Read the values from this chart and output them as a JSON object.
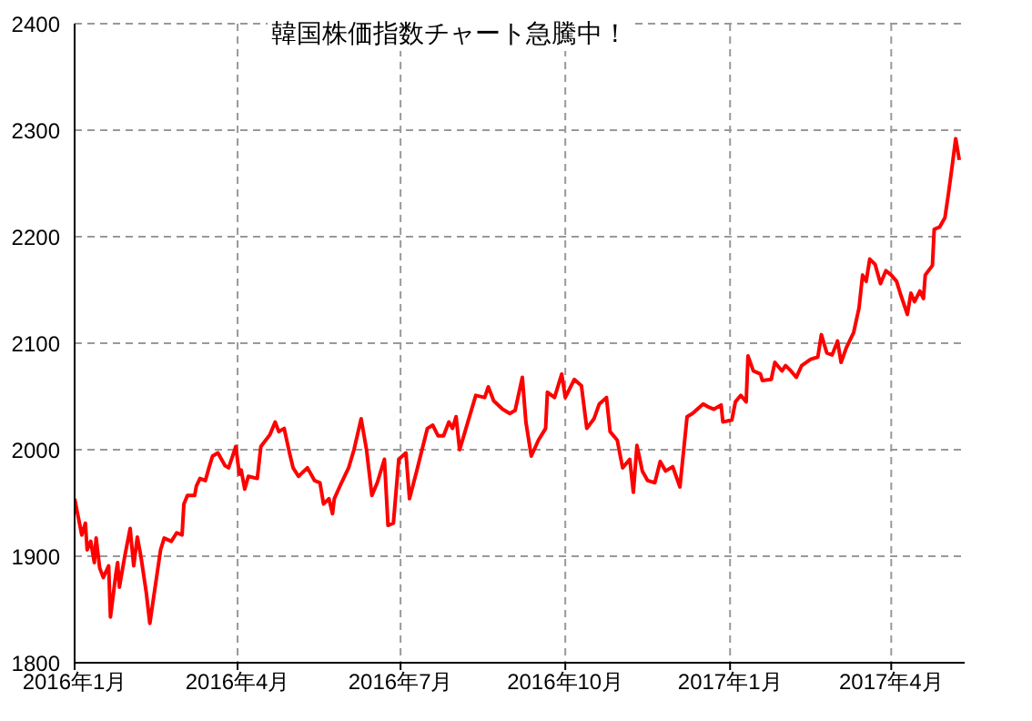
{
  "chart_data": {
    "type": "line",
    "title": "韓国株価指数チャート急騰中！",
    "x": [
      "2016-01-01",
      "2016-01-03",
      "2016-01-05",
      "2016-01-07",
      "2016-01-08",
      "2016-01-10",
      "2016-01-12",
      "2016-01-13",
      "2016-01-15",
      "2016-01-17",
      "2016-01-20",
      "2016-01-21",
      "2016-01-24",
      "2016-01-25",
      "2016-01-26",
      "2016-01-29",
      "2016-02-01",
      "2016-02-03",
      "2016-02-05",
      "2016-02-07",
      "2016-02-10",
      "2016-02-12",
      "2016-02-14",
      "2016-02-18",
      "2016-02-20",
      "2016-02-24",
      "2016-02-27",
      "2016-03-01",
      "2016-03-02",
      "2016-03-04",
      "2016-03-08",
      "2016-03-09",
      "2016-03-11",
      "2016-03-14",
      "2016-03-16",
      "2016-03-18",
      "2016-03-21",
      "2016-03-25",
      "2016-03-27",
      "2016-03-31",
      "2016-04-02",
      "2016-04-03",
      "2016-04-05",
      "2016-04-07",
      "2016-04-12",
      "2016-04-14",
      "2016-04-19",
      "2016-04-22",
      "2016-04-24",
      "2016-04-27",
      "2016-04-30",
      "2016-05-02",
      "2016-05-05",
      "2016-05-10",
      "2016-05-14",
      "2016-05-17",
      "2016-05-19",
      "2016-05-22",
      "2016-05-24",
      "2016-05-25",
      "2016-05-29",
      "2016-06-02",
      "2016-06-05",
      "2016-06-09",
      "2016-06-12",
      "2016-06-15",
      "2016-06-18",
      "2016-06-22",
      "2016-06-24",
      "2016-06-27",
      "2016-06-30",
      "2016-07-04",
      "2016-07-06",
      "2016-07-10",
      "2016-07-16",
      "2016-07-19",
      "2016-07-22",
      "2016-07-25",
      "2016-07-28",
      "2016-07-30",
      "2016-08-01",
      "2016-08-03",
      "2016-08-06",
      "2016-08-12",
      "2016-08-17",
      "2016-08-19",
      "2016-08-22",
      "2016-08-27",
      "2016-08-31",
      "2016-09-03",
      "2016-09-07",
      "2016-09-09",
      "2016-09-12",
      "2016-09-16",
      "2016-09-20",
      "2016-09-21",
      "2016-09-25",
      "2016-09-29",
      "2016-10-01",
      "2016-10-06",
      "2016-10-10",
      "2016-10-13",
      "2016-10-17",
      "2016-10-20",
      "2016-10-24",
      "2016-10-26",
      "2016-10-30",
      "2016-11-02",
      "2016-11-06",
      "2016-11-08",
      "2016-11-10",
      "2016-11-13",
      "2016-11-16",
      "2016-11-20",
      "2016-11-23",
      "2016-11-26",
      "2016-11-30",
      "2016-12-04",
      "2016-12-08",
      "2016-12-11",
      "2016-12-17",
      "2016-12-20",
      "2016-12-23",
      "2016-12-27",
      "2016-12-28",
      "2017-01-02",
      "2017-01-04",
      "2017-01-07",
      "2017-01-10",
      "2017-01-11",
      "2017-01-14",
      "2017-01-18",
      "2017-01-19",
      "2017-01-24",
      "2017-01-26",
      "2017-01-30",
      "2017-02-01",
      "2017-02-04",
      "2017-02-07",
      "2017-02-10",
      "2017-02-15",
      "2017-02-19",
      "2017-02-21",
      "2017-02-24",
      "2017-02-27",
      "2017-03-02",
      "2017-03-04",
      "2017-03-07",
      "2017-03-11",
      "2017-03-14",
      "2017-03-16",
      "2017-03-18",
      "2017-03-20",
      "2017-03-23",
      "2017-03-26",
      "2017-03-29",
      "2017-04-01",
      "2017-04-04",
      "2017-04-06",
      "2017-04-10",
      "2017-04-12",
      "2017-04-14",
      "2017-04-17",
      "2017-04-19",
      "2017-04-20",
      "2017-04-24",
      "2017-04-25",
      "2017-04-28",
      "2017-05-01",
      "2017-05-03",
      "2017-05-05",
      "2017-05-07",
      "2017-05-09"
    ],
    "series": [
      {
        "color": "#ff0000",
        "values": [
          1954,
          1937,
          1920,
          1931,
          1906,
          1914,
          1894,
          1917,
          1889,
          1880,
          1891,
          1843,
          1883,
          1894,
          1871,
          1900,
          1926,
          1891,
          1918,
          1900,
          1866,
          1837,
          1860,
          1906,
          1917,
          1914,
          1922,
          1920,
          1949,
          1957,
          1957,
          1966,
          1973,
          1971,
          1983,
          1994,
          1997,
          1985,
          1983,
          2003,
          1977,
          1981,
          1963,
          1975,
          1973,
          2003,
          2014,
          2026,
          2017,
          2020,
          1997,
          1983,
          1975,
          1983,
          1971,
          1969,
          1949,
          1954,
          1940,
          1954,
          1969,
          1983,
          2000,
          2029,
          2000,
          1957,
          1969,
          1991,
          1929,
          1931,
          1991,
          1997,
          1954,
          1980,
          2020,
          2023,
          2013,
          2013,
          2026,
          2020,
          2031,
          2000,
          2017,
          2051,
          2049,
          2059,
          2046,
          2038,
          2034,
          2037,
          2068,
          2026,
          1994,
          2009,
          2020,
          2054,
          2049,
          2071,
          2049,
          2066,
          2060,
          2020,
          2029,
          2043,
          2049,
          2017,
          2009,
          1983,
          1991,
          1960,
          2004,
          1980,
          1971,
          1969,
          1989,
          1980,
          1984,
          1965,
          2031,
          2034,
          2043,
          2040,
          2038,
          2042,
          2026,
          2028,
          2045,
          2051,
          2045,
          2088,
          2074,
          2071,
          2065,
          2066,
          2082,
          2074,
          2079,
          2074,
          2068,
          2079,
          2085,
          2087,
          2108,
          2091,
          2089,
          2102,
          2082,
          2096,
          2110,
          2133,
          2164,
          2158,
          2179,
          2174,
          2156,
          2168,
          2164,
          2158,
          2147,
          2127,
          2147,
          2139,
          2149,
          2142,
          2164,
          2173,
          2207,
          2209,
          2218,
          2241,
          2266,
          2292,
          2272
        ]
      }
    ],
    "xlim": [
      "2016-01-01",
      "2017-05-12"
    ],
    "xticks": [
      {
        "value": "2016-01-01",
        "label": "2016年1月"
      },
      {
        "value": "2016-04-01",
        "label": "2016年4月"
      },
      {
        "value": "2016-07-01",
        "label": "2016年7月"
      },
      {
        "value": "2016-10-01",
        "label": "2016年10月"
      },
      {
        "value": "2017-01-01",
        "label": "2017年1月"
      },
      {
        "value": "2017-04-01",
        "label": "2017年4月"
      }
    ],
    "ylim": [
      1800,
      2400
    ],
    "yticks": [
      1800,
      1900,
      2000,
      2100,
      2200,
      2300,
      2400
    ],
    "grid": true,
    "marker": "none",
    "line_style": "solid"
  }
}
